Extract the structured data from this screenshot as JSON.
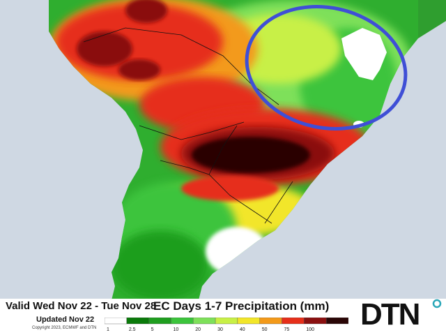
{
  "header": {
    "valid_range": "Valid Wed Nov 22 - Tue Nov 28",
    "updated": "Updated Nov 22",
    "copyright": "Copyright 2023, ECMWF and DTN",
    "product_title": "EC Days 1-7 Precipitation (mm)"
  },
  "brand": {
    "logo_text": "DTN",
    "accent_color": "#2aa7b8"
  },
  "legend": {
    "units": "mm",
    "bins": [
      {
        "label": "1",
        "color": "#ffffff"
      },
      {
        "label": "2.5",
        "color": "#0a7a0a"
      },
      {
        "label": "5",
        "color": "#1f9e1f"
      },
      {
        "label": "10",
        "color": "#3cc43c"
      },
      {
        "label": "20",
        "color": "#7ee05a"
      },
      {
        "label": "30",
        "color": "#c8f046"
      },
      {
        "label": "40",
        "color": "#f2e629"
      },
      {
        "label": "50",
        "color": "#f39a1a"
      },
      {
        "label": "75",
        "color": "#e62f1a"
      },
      {
        "label": "100",
        "color": "#8a1010"
      },
      {
        "label": "",
        "color": "#2a0606"
      }
    ]
  },
  "map": {
    "region": "South America",
    "ocean_color": "#cfd8e3",
    "annotation": {
      "shape": "ellipse",
      "color": "#3f4fd6"
    }
  }
}
